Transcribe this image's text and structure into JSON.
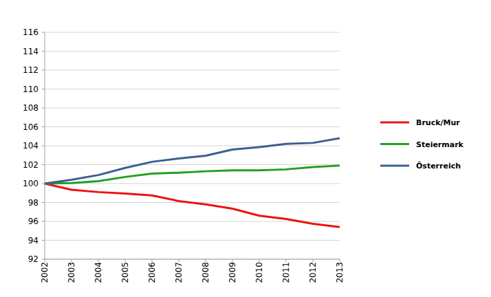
{
  "chart_data": {
    "type": "line",
    "categories": [
      "2002",
      "2003",
      "2004",
      "2005",
      "2006",
      "2007",
      "2008",
      "2009",
      "2010",
      "2011",
      "2012",
      "2013"
    ],
    "series": [
      {
        "name": "Bruck/Mur",
        "color": "#ee1111",
        "values": [
          100,
          99.35,
          99.1,
          98.95,
          98.75,
          98.15,
          97.8,
          97.35,
          96.6,
          96.25,
          95.75,
          95.4
        ]
      },
      {
        "name": "Steiermark",
        "color": "#22a022",
        "values": [
          100,
          100.05,
          100.25,
          100.7,
          101.05,
          101.15,
          101.3,
          101.4,
          101.4,
          101.5,
          101.75,
          101.9
        ]
      },
      {
        "name": "Österreich",
        "color": "#3b6090",
        "values": [
          100,
          100.4,
          100.9,
          101.65,
          102.3,
          102.65,
          102.95,
          103.6,
          103.85,
          104.2,
          104.3,
          104.8
        ]
      }
    ],
    "ylim": [
      92,
      116
    ],
    "yticks": [
      92,
      94,
      96,
      98,
      100,
      102,
      104,
      106,
      108,
      110,
      112,
      114,
      116
    ],
    "grid": true,
    "legend": "right"
  }
}
